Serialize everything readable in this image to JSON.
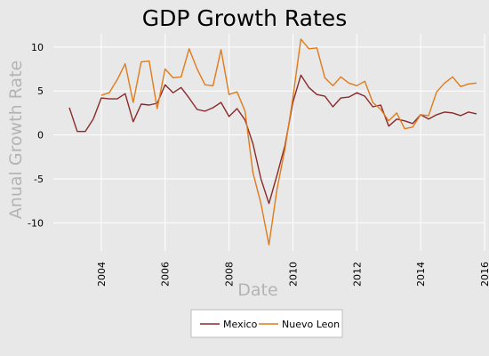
{
  "chart_data": {
    "type": "line",
    "title": "GDP Growth Rates",
    "xlabel": "Date",
    "ylabel": "Anual Growth Rate",
    "xlim": [
      2002.5,
      2016.0
    ],
    "ylim": [
      -13.2,
      11.5
    ],
    "x_ticks": [
      2004,
      2006,
      2008,
      2010,
      2012,
      2014,
      2016
    ],
    "y_ticks": [
      -10,
      -5,
      0,
      5,
      10
    ],
    "grid": true,
    "legend_position": "bottom",
    "series": [
      {
        "name": "Mexico",
        "color": "#8b2a2a",
        "x": [
          2003.0,
          2003.25,
          2003.5,
          2003.75,
          2004.0,
          2004.25,
          2004.5,
          2004.75,
          2005.0,
          2005.25,
          2005.5,
          2005.75,
          2006.0,
          2006.25,
          2006.5,
          2006.75,
          2007.0,
          2007.25,
          2007.5,
          2007.75,
          2008.0,
          2008.25,
          2008.5,
          2008.75,
          2009.0,
          2009.25,
          2009.5,
          2009.75,
          2010.0,
          2010.25,
          2010.5,
          2010.75,
          2011.0,
          2011.25,
          2011.5,
          2011.75,
          2012.0,
          2012.25,
          2012.5,
          2012.75,
          2013.0,
          2013.25,
          2013.5,
          2013.75,
          2014.0,
          2014.25,
          2014.5,
          2014.75,
          2015.0,
          2015.25,
          2015.5,
          2015.75
        ],
        "values": [
          3.1,
          0.4,
          0.4,
          1.8,
          4.2,
          4.1,
          4.1,
          4.7,
          1.5,
          3.5,
          3.4,
          3.6,
          5.7,
          4.8,
          5.4,
          4.2,
          2.9,
          2.7,
          3.1,
          3.7,
          2.1,
          3.0,
          1.7,
          -1.0,
          -5.0,
          -7.8,
          -4.6,
          -1.2,
          3.7,
          6.8,
          5.4,
          4.6,
          4.4,
          3.2,
          4.2,
          4.3,
          4.8,
          4.4,
          3.2,
          3.4,
          1.0,
          1.8,
          1.6,
          1.3,
          2.3,
          1.8,
          2.3,
          2.6,
          2.5,
          2.2,
          2.6,
          2.4
        ]
      },
      {
        "name": "Nuevo Leon",
        "color": "#e07b1a",
        "x": [
          2004.0,
          2004.25,
          2004.5,
          2004.75,
          2005.0,
          2005.25,
          2005.5,
          2005.75,
          2006.0,
          2006.25,
          2006.5,
          2006.75,
          2007.0,
          2007.25,
          2007.5,
          2007.75,
          2008.0,
          2008.25,
          2008.5,
          2008.75,
          2009.0,
          2009.25,
          2009.5,
          2009.75,
          2010.0,
          2010.25,
          2010.5,
          2010.75,
          2011.0,
          2011.25,
          2011.5,
          2011.75,
          2012.0,
          2012.25,
          2012.5,
          2012.75,
          2013.0,
          2013.25,
          2013.5,
          2013.75,
          2014.0,
          2014.25,
          2014.5,
          2014.75,
          2015.0,
          2015.25,
          2015.5,
          2015.75
        ],
        "values": [
          4.5,
          4.8,
          6.3,
          8.1,
          3.7,
          8.3,
          8.4,
          3.0,
          7.5,
          6.5,
          6.6,
          9.8,
          7.5,
          5.7,
          5.6,
          9.7,
          4.6,
          4.9,
          2.7,
          -4.3,
          -7.8,
          -12.5,
          -6.2,
          -1.6,
          4.2,
          10.9,
          9.8,
          9.9,
          6.5,
          5.6,
          6.6,
          5.9,
          5.6,
          6.1,
          3.7,
          2.9,
          1.6,
          2.5,
          0.7,
          0.9,
          2.3,
          2.2,
          4.9,
          5.9,
          6.6,
          5.5,
          5.8,
          5.9
        ]
      }
    ]
  }
}
